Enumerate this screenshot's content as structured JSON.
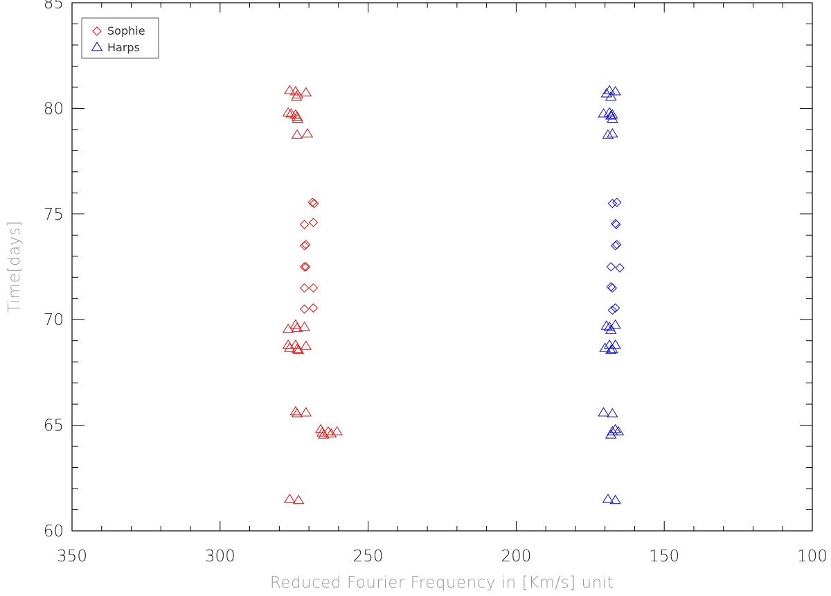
{
  "chart_data": {
    "type": "scatter",
    "title": "",
    "xlabel": "Reduced Fourier Frequency in [Km/s] unit",
    "ylabel": "Time[days]",
    "xlim": [
      350,
      100
    ],
    "ylim": [
      60,
      85
    ],
    "x_reversed": true,
    "x_ticks": [
      350,
      300,
      250,
      200,
      150,
      100
    ],
    "y_ticks": [
      60,
      65,
      70,
      75,
      80,
      85
    ],
    "x_minor_step": 10,
    "y_minor_step": 1,
    "grid": false,
    "legend": {
      "position": "top-left",
      "entries": [
        {
          "label": "Sophie",
          "marker": "diamond",
          "color": "#e02020"
        },
        {
          "label": "Harps",
          "marker": "triangle",
          "color": "#2020d0"
        }
      ]
    },
    "series": [
      {
        "color": "#e02020",
        "marker": "diamond",
        "points": [
          [
            268.8,
            75.55
          ],
          [
            268.2,
            75.5
          ],
          [
            271.5,
            74.5
          ],
          [
            268.5,
            74.6
          ],
          [
            271.5,
            73.5
          ],
          [
            271.0,
            73.55
          ],
          [
            271.5,
            72.5
          ],
          [
            271.0,
            72.5
          ],
          [
            271.5,
            71.5
          ],
          [
            268.5,
            71.5
          ],
          [
            271.5,
            70.5
          ],
          [
            268.5,
            70.55
          ]
        ]
      },
      {
        "color": "#e02020",
        "marker": "triangle",
        "points": [
          [
            276.5,
            80.85
          ],
          [
            274.5,
            80.8
          ],
          [
            273.8,
            80.65
          ],
          [
            274.2,
            80.55
          ],
          [
            271.0,
            80.75
          ],
          [
            277.0,
            79.8
          ],
          [
            276.0,
            79.75
          ],
          [
            274.5,
            79.7
          ],
          [
            274.0,
            79.6
          ],
          [
            273.8,
            79.5
          ],
          [
            274.0,
            78.75
          ],
          [
            270.5,
            78.8
          ],
          [
            277.0,
            69.55
          ],
          [
            274.5,
            69.75
          ],
          [
            274.0,
            69.6
          ],
          [
            271.5,
            69.65
          ],
          [
            277.0,
            68.8
          ],
          [
            276.5,
            68.65
          ],
          [
            274.5,
            68.8
          ],
          [
            274.0,
            68.6
          ],
          [
            273.5,
            68.55
          ],
          [
            271.0,
            68.75
          ],
          [
            274.5,
            65.65
          ],
          [
            274.0,
            65.55
          ],
          [
            271.0,
            65.6
          ],
          [
            266.0,
            64.8
          ],
          [
            265.5,
            64.65
          ],
          [
            265.0,
            64.55
          ],
          [
            263.5,
            64.7
          ],
          [
            262.5,
            64.6
          ],
          [
            260.5,
            64.7
          ],
          [
            276.5,
            61.5
          ],
          [
            273.5,
            61.45
          ]
        ]
      },
      {
        "color": "#2020d0",
        "marker": "diamond",
        "points": [
          [
            167.5,
            75.5
          ],
          [
            166.0,
            75.55
          ],
          [
            166.5,
            74.55
          ],
          [
            166.2,
            74.5
          ],
          [
            166.5,
            73.5
          ],
          [
            166.0,
            73.55
          ],
          [
            168.0,
            72.5
          ],
          [
            165.0,
            72.45
          ],
          [
            168.0,
            71.55
          ],
          [
            167.5,
            71.5
          ],
          [
            167.5,
            70.45
          ],
          [
            166.5,
            70.55
          ]
        ]
      },
      {
        "color": "#2020d0",
        "marker": "triangle",
        "points": [
          [
            169.5,
            80.7
          ],
          [
            168.5,
            80.85
          ],
          [
            168.0,
            80.55
          ],
          [
            166.5,
            80.8
          ],
          [
            170.5,
            79.75
          ],
          [
            168.5,
            79.8
          ],
          [
            168.0,
            79.65
          ],
          [
            167.5,
            79.7
          ],
          [
            167.5,
            79.5
          ],
          [
            169.0,
            78.75
          ],
          [
            167.5,
            78.8
          ],
          [
            169.5,
            69.7
          ],
          [
            168.5,
            69.65
          ],
          [
            168.0,
            69.5
          ],
          [
            166.5,
            69.75
          ],
          [
            170.0,
            68.65
          ],
          [
            168.5,
            68.8
          ],
          [
            168.0,
            68.55
          ],
          [
            167.5,
            68.6
          ],
          [
            166.5,
            68.8
          ],
          [
            170.5,
            65.6
          ],
          [
            167.5,
            65.55
          ],
          [
            168.0,
            64.55
          ],
          [
            167.5,
            64.7
          ],
          [
            166.5,
            64.8
          ],
          [
            165.5,
            64.7
          ],
          [
            169.0,
            61.5
          ],
          [
            166.5,
            61.45
          ]
        ]
      }
    ]
  }
}
